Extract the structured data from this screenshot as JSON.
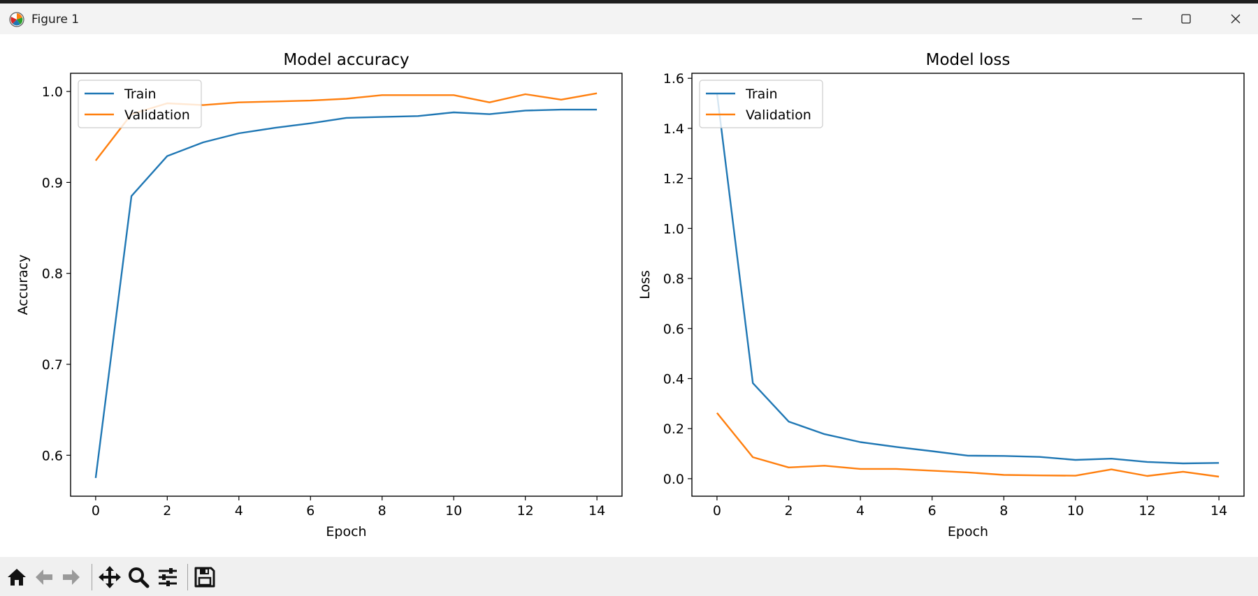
{
  "window": {
    "title": "Figure 1",
    "icon": "matplotlib-logo"
  },
  "toolbar": {
    "buttons": [
      {
        "name": "home-icon"
      },
      {
        "name": "back-arrow-icon"
      },
      {
        "name": "forward-arrow-icon"
      },
      {
        "name": "pan-move-icon"
      },
      {
        "name": "zoom-magnifier-icon"
      },
      {
        "name": "configure-subplots-icon"
      },
      {
        "name": "save-floppy-icon"
      }
    ]
  },
  "chart_data": [
    {
      "type": "line",
      "title": "Model accuracy",
      "xlabel": "Epoch",
      "ylabel": "Accuracy",
      "xlim": [
        -0.7,
        14.7
      ],
      "ylim": [
        0.555,
        1.02
      ],
      "xticks": [
        0,
        2,
        4,
        6,
        8,
        10,
        12,
        14
      ],
      "yticks": [
        0.6,
        0.7,
        0.8,
        0.9,
        1.0
      ],
      "ytick_labels": [
        "0.6",
        "0.7",
        "0.8",
        "0.9",
        "1.0"
      ],
      "legend_position": "upper-left",
      "x": [
        0,
        1,
        2,
        3,
        4,
        5,
        6,
        7,
        8,
        9,
        10,
        11,
        12,
        13,
        14
      ],
      "series": [
        {
          "name": "Train",
          "color": "#1f77b4",
          "values": [
            0.575,
            0.885,
            0.929,
            0.944,
            0.954,
            0.96,
            0.965,
            0.971,
            0.972,
            0.973,
            0.977,
            0.975,
            0.979,
            0.98,
            0.98
          ]
        },
        {
          "name": "Validation",
          "color": "#ff7f0e",
          "values": [
            0.924,
            0.975,
            0.987,
            0.985,
            0.988,
            0.989,
            0.99,
            0.992,
            0.996,
            0.996,
            0.996,
            0.988,
            0.997,
            0.991,
            0.998
          ]
        }
      ]
    },
    {
      "type": "line",
      "title": "Model loss",
      "xlabel": "Epoch",
      "ylabel": "Loss",
      "xlim": [
        -0.7,
        14.7
      ],
      "ylim": [
        -0.07,
        1.62
      ],
      "xticks": [
        0,
        2,
        4,
        6,
        8,
        10,
        12,
        14
      ],
      "yticks": [
        0.0,
        0.2,
        0.4,
        0.6,
        0.8,
        1.0,
        1.2,
        1.4,
        1.6
      ],
      "ytick_labels": [
        "0.0",
        "0.2",
        "0.4",
        "0.6",
        "0.8",
        "1.0",
        "1.2",
        "1.4",
        "1.6"
      ],
      "legend_position": "upper-left",
      "x": [
        0,
        1,
        2,
        3,
        4,
        5,
        6,
        7,
        8,
        9,
        10,
        11,
        12,
        13,
        14
      ],
      "series": [
        {
          "name": "Train",
          "color": "#1f77b4",
          "values": [
            1.54,
            0.382,
            0.228,
            0.178,
            0.146,
            0.127,
            0.11,
            0.092,
            0.091,
            0.087,
            0.075,
            0.08,
            0.067,
            0.061,
            0.063
          ]
        },
        {
          "name": "Validation",
          "color": "#ff7f0e",
          "values": [
            0.263,
            0.086,
            0.045,
            0.052,
            0.039,
            0.039,
            0.032,
            0.025,
            0.015,
            0.013,
            0.012,
            0.037,
            0.011,
            0.028,
            0.008
          ]
        }
      ]
    }
  ]
}
